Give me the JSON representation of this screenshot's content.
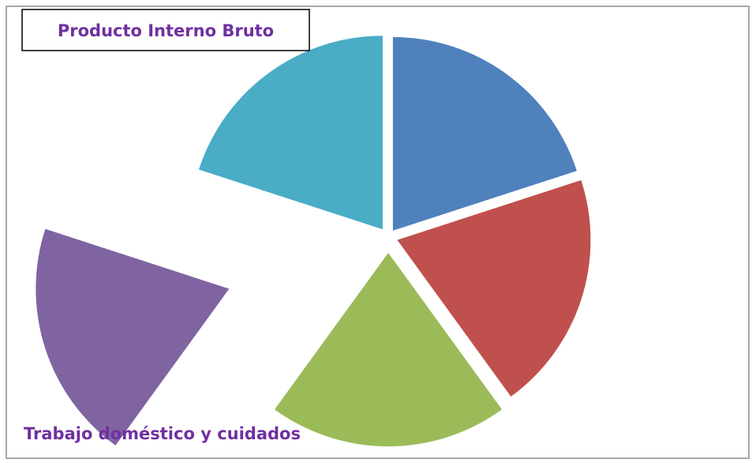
{
  "chart_data": {
    "type": "pie",
    "title": "Producto Interno Bruto",
    "annotation": "Trabajo doméstico y cuidados",
    "values": [
      20,
      20,
      20,
      20,
      20
    ],
    "colors": [
      "#4f81bd",
      "#c0504d",
      "#9bbb59",
      "#8064a2",
      "#4bacc6"
    ]
  }
}
